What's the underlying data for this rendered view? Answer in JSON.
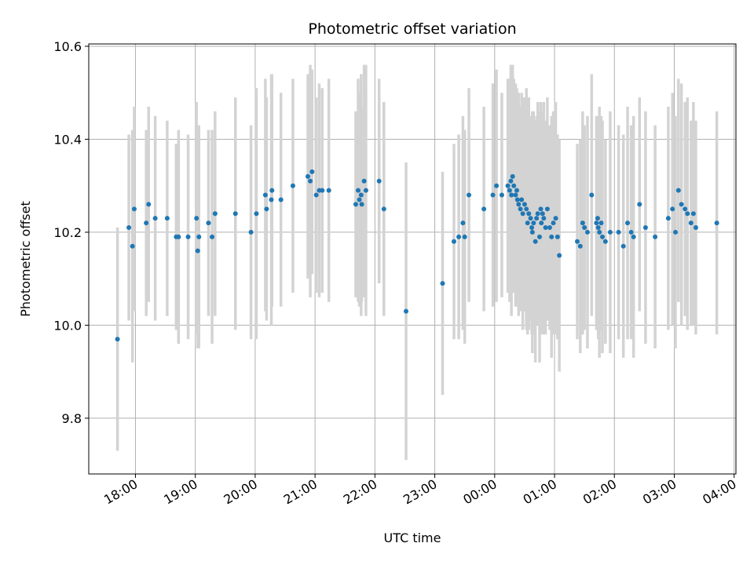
{
  "chart_data": {
    "type": "scatter",
    "title": "Photometric offset variation",
    "xlabel": "UTC time",
    "ylabel": "Photometric offset",
    "grid": true,
    "x_unit": "hours since 18:00 UTC",
    "xlim": [
      -0.78,
      10.03
    ],
    "ylim": [
      9.68,
      10.605
    ],
    "x_ticks": [
      {
        "value": 0,
        "label": "18:00"
      },
      {
        "value": 1,
        "label": "19:00"
      },
      {
        "value": 2,
        "label": "20:00"
      },
      {
        "value": 3,
        "label": "21:00"
      },
      {
        "value": 4,
        "label": "22:00"
      },
      {
        "value": 5,
        "label": "23:00"
      },
      {
        "value": 6,
        "label": "00:00"
      },
      {
        "value": 7,
        "label": "01:00"
      },
      {
        "value": 8,
        "label": "02:00"
      },
      {
        "value": 9,
        "label": "03:00"
      },
      {
        "value": 10,
        "label": "04:00"
      }
    ],
    "y_ticks": [
      {
        "value": 9.8,
        "label": "9.8"
      },
      {
        "value": 10.0,
        "label": "10.0"
      },
      {
        "value": 10.2,
        "label": "10.2"
      },
      {
        "value": 10.4,
        "label": "10.4"
      },
      {
        "value": 10.6,
        "label": "10.6"
      }
    ],
    "colors": {
      "point": "#1f77b4",
      "errorbar": "#d3d3d3",
      "grid": "#b0b0b0",
      "axis": "#000000"
    },
    "series": [
      {
        "name": "offset",
        "x": [
          -0.3,
          -0.11,
          -0.05,
          -0.02,
          0.18,
          0.22,
          0.33,
          0.53,
          0.68,
          0.72,
          0.88,
          1.02,
          1.04,
          1.06,
          1.22,
          1.28,
          1.33,
          1.67,
          1.93,
          2.02,
          2.17,
          2.19,
          2.27,
          2.28,
          2.43,
          2.63,
          2.88,
          2.92,
          2.95,
          3.02,
          3.07,
          3.12,
          3.23,
          3.68,
          3.72,
          3.74,
          3.77,
          3.78,
          3.82,
          3.85,
          4.07,
          4.15,
          4.52,
          5.13,
          5.32,
          5.4,
          5.47,
          5.5,
          5.57,
          5.82,
          5.97,
          6.03,
          6.12,
          6.22,
          6.25,
          6.27,
          6.28,
          6.3,
          6.32,
          6.35,
          6.37,
          6.38,
          6.4,
          6.43,
          6.45,
          6.47,
          6.5,
          6.53,
          6.55,
          6.57,
          6.6,
          6.62,
          6.63,
          6.65,
          6.68,
          6.7,
          6.72,
          6.75,
          6.77,
          6.78,
          6.8,
          6.82,
          6.85,
          6.88,
          6.92,
          6.95,
          6.98,
          7.02,
          7.05,
          7.08,
          7.38,
          7.43,
          7.47,
          7.5,
          7.55,
          7.62,
          7.7,
          7.72,
          7.73,
          7.75,
          7.78,
          7.8,
          7.85,
          7.93,
          8.07,
          8.15,
          8.22,
          8.28,
          8.32,
          8.42,
          8.52,
          8.68,
          8.9,
          8.97,
          9.02,
          9.07,
          9.12,
          9.18,
          9.22,
          9.28,
          9.32,
          9.36,
          9.71
        ],
        "y": [
          9.97,
          10.21,
          10.17,
          10.25,
          10.22,
          10.26,
          10.23,
          10.23,
          10.19,
          10.19,
          10.19,
          10.23,
          10.16,
          10.19,
          10.22,
          10.19,
          10.24,
          10.24,
          10.2,
          10.24,
          10.28,
          10.25,
          10.27,
          10.29,
          10.27,
          10.3,
          10.32,
          10.31,
          10.33,
          10.28,
          10.29,
          10.29,
          10.29,
          10.26,
          10.29,
          10.27,
          10.28,
          10.26,
          10.31,
          10.29,
          10.31,
          10.25,
          10.03,
          10.09,
          10.18,
          10.19,
          10.22,
          10.19,
          10.28,
          10.25,
          10.28,
          10.3,
          10.28,
          10.3,
          10.29,
          10.31,
          10.28,
          10.32,
          10.3,
          10.28,
          10.29,
          10.27,
          10.26,
          10.25,
          10.27,
          10.24,
          10.26,
          10.25,
          10.22,
          10.24,
          10.23,
          10.21,
          10.2,
          10.22,
          10.18,
          10.23,
          10.24,
          10.19,
          10.25,
          10.22,
          10.24,
          10.23,
          10.21,
          10.25,
          10.21,
          10.19,
          10.22,
          10.23,
          10.19,
          10.15,
          10.18,
          10.17,
          10.22,
          10.21,
          10.2,
          10.28,
          10.22,
          10.23,
          10.21,
          10.2,
          10.22,
          10.19,
          10.18,
          10.2,
          10.2,
          10.17,
          10.22,
          10.2,
          10.19,
          10.26,
          10.21,
          10.19,
          10.23,
          10.25,
          10.2,
          10.29,
          10.26,
          10.25,
          10.24,
          10.22,
          10.24,
          10.21,
          10.22
        ],
        "yerr": [
          0.24,
          0.2,
          0.25,
          0.22,
          0.2,
          0.21,
          0.22,
          0.21,
          0.2,
          0.23,
          0.22,
          0.25,
          0.21,
          0.24,
          0.2,
          0.23,
          0.22,
          0.25,
          0.23,
          0.27,
          0.25,
          0.24,
          0.27,
          0.25,
          0.23,
          0.23,
          0.22,
          0.25,
          0.22,
          0.21,
          0.23,
          0.22,
          0.24,
          0.2,
          0.24,
          0.23,
          0.26,
          0.21,
          0.25,
          0.27,
          0.22,
          0.23,
          0.32,
          0.24,
          0.21,
          0.22,
          0.23,
          0.23,
          0.23,
          0.22,
          0.24,
          0.25,
          0.22,
          0.23,
          0.24,
          0.25,
          0.26,
          0.24,
          0.23,
          0.24,
          0.22,
          0.23,
          0.24,
          0.22,
          0.23,
          0.25,
          0.23,
          0.26,
          0.24,
          0.25,
          0.22,
          0.23,
          0.26,
          0.24,
          0.26,
          0.22,
          0.24,
          0.27,
          0.23,
          0.24,
          0.22,
          0.25,
          0.23,
          0.24,
          0.22,
          0.26,
          0.24,
          0.25,
          0.22,
          0.25,
          0.21,
          0.23,
          0.24,
          0.22,
          0.25,
          0.26,
          0.23,
          0.22,
          0.24,
          0.27,
          0.23,
          0.25,
          0.22,
          0.26,
          0.23,
          0.24,
          0.25,
          0.23,
          0.26,
          0.23,
          0.25,
          0.24,
          0.24,
          0.25,
          0.25,
          0.24,
          0.26,
          0.23,
          0.25,
          0.22,
          0.24,
          0.23,
          0.24
        ]
      }
    ]
  }
}
